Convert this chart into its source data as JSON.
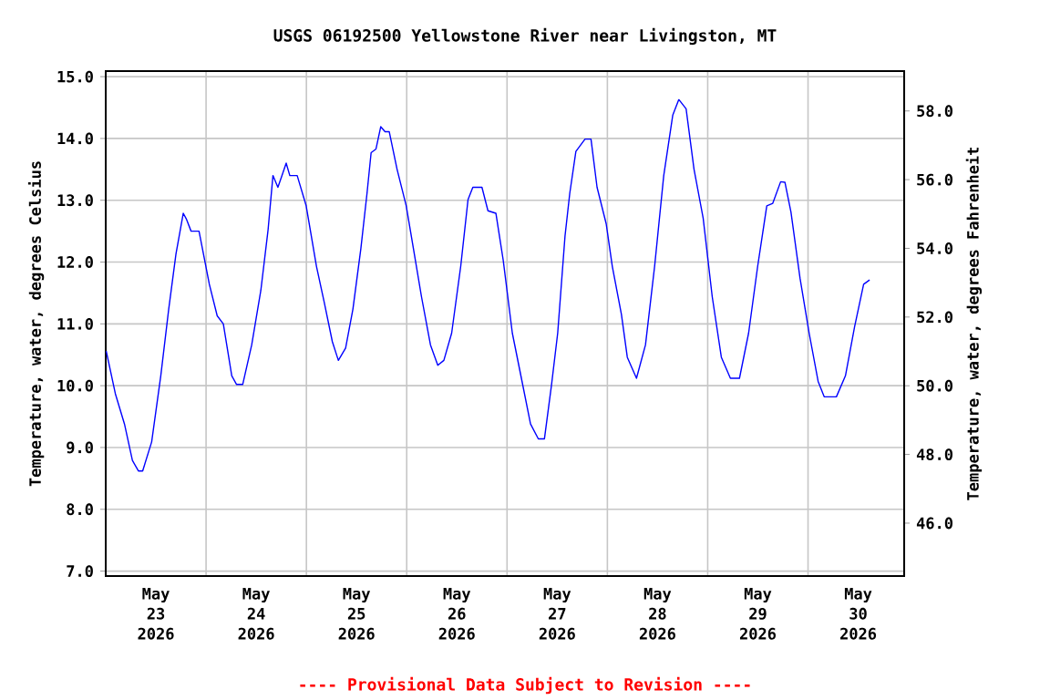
{
  "chart_data": {
    "type": "line",
    "title": "USGS 06192500 Yellowstone River near Livingston, MT",
    "ylabel": "Temperature, water, degrees Celsius",
    "y2label": "Temperature, water, degrees Fahrenheit",
    "annotations": [
      "---- Provisional Data Subject to Revision ----"
    ],
    "color": "#0000ff",
    "grid": true,
    "xlim": [
      "2026-05-23T00:00",
      "2026-05-30T23:00"
    ],
    "xticks": [
      {
        "value": "2026-05-23T12:00",
        "label": "May 23 2026"
      },
      {
        "value": "2026-05-24T12:00",
        "label": "May 24 2026"
      },
      {
        "value": "2026-05-25T12:00",
        "label": "May 25 2026"
      },
      {
        "value": "2026-05-26T12:00",
        "label": "May 26 2026"
      },
      {
        "value": "2026-05-27T12:00",
        "label": "May 27 2026"
      },
      {
        "value": "2026-05-28T12:00",
        "label": "May 28 2026"
      },
      {
        "value": "2026-05-29T12:00",
        "label": "May 29 2026"
      },
      {
        "value": "2026-05-30T12:00",
        "label": "May 30 2026"
      },
      {
        "value": "2026-05-24T00:00",
        "label": null
      },
      {
        "value": "2026-05-25T00:00",
        "label": null
      },
      {
        "value": "2026-05-26T00:00",
        "label": null
      },
      {
        "value": "2026-05-27T00:00",
        "label": null
      },
      {
        "value": "2026-05-28T00:00",
        "label": null
      },
      {
        "value": "2026-05-29T00:00",
        "label": null
      },
      {
        "value": "2026-05-30T00:00",
        "label": null
      }
    ],
    "ylim": [
      6.92,
      15.09
    ],
    "yticks": [
      {
        "value": 7,
        "label": "7.0"
      },
      {
        "value": 8,
        "label": "8.0"
      },
      {
        "value": 9,
        "label": "9.0"
      },
      {
        "value": 10,
        "label": "10.0"
      },
      {
        "value": 11,
        "label": "11.0"
      },
      {
        "value": 12,
        "label": "12.0"
      },
      {
        "value": 13,
        "label": "13.0"
      },
      {
        "value": 14,
        "label": "14.0"
      },
      {
        "value": 15,
        "label": "15.0"
      }
    ],
    "y2lim": [
      44.46,
      59.16
    ],
    "y2ticks": [
      {
        "value": 46,
        "label": "46.0"
      },
      {
        "value": 48,
        "label": "48.0"
      },
      {
        "value": 50,
        "label": "50.0"
      },
      {
        "value": 52,
        "label": "52.0"
      },
      {
        "value": 54,
        "label": "54.0"
      },
      {
        "value": 56,
        "label": "56.0"
      },
      {
        "value": 58,
        "label": "58.0"
      }
    ],
    "x": [
      "2026-05-23T00:07",
      "2026-05-23T02:18",
      "2026-05-23T04:29",
      "2026-05-23T06:23",
      "2026-05-23T07:49",
      "2026-05-23T08:50",
      "2026-05-23T10:59",
      "2026-05-23T13:10",
      "2026-05-23T15:04",
      "2026-05-23T16:48",
      "2026-05-23T18:33",
      "2026-05-23T19:16",
      "2026-05-23T20:25",
      "2026-05-23T22:19",
      "2026-05-24T00:47",
      "2026-05-24T02:40",
      "2026-05-24T04:08",
      "2026-05-24T06:09",
      "2026-05-24T07:18",
      "2026-05-24T08:46",
      "2026-05-24T10:55",
      "2026-05-24T13:06",
      "2026-05-24T14:50",
      "2026-05-24T16:00",
      "2026-05-24T17:11",
      "2026-05-24T18:10",
      "2026-05-24T19:10",
      "2026-05-24T20:02",
      "2026-05-24T21:48",
      "2026-05-24T23:57",
      "2026-05-25T02:25",
      "2026-05-25T04:18",
      "2026-05-25T06:13",
      "2026-05-25T07:39",
      "2026-05-25T09:23",
      "2026-05-25T11:08",
      "2026-05-25T13:02",
      "2026-05-25T14:30",
      "2026-05-25T15:29",
      "2026-05-25T16:39",
      "2026-05-25T17:47",
      "2026-05-25T18:49",
      "2026-05-25T19:49",
      "2026-05-25T21:42",
      "2026-05-25T23:53",
      "2026-05-26T01:36",
      "2026-05-26T03:32",
      "2026-05-26T05:41",
      "2026-05-26T07:26",
      "2026-05-26T08:53",
      "2026-05-26T10:45",
      "2026-05-26T12:55",
      "2026-05-26T14:40",
      "2026-05-26T15:49",
      "2026-05-26T18:00",
      "2026-05-26T19:26",
      "2026-05-26T21:20",
      "2026-05-26T23:05",
      "2026-05-27T01:16",
      "2026-05-27T03:26",
      "2026-05-27T05:37",
      "2026-05-27T07:29",
      "2026-05-27T08:57",
      "2026-05-27T10:39",
      "2026-05-27T12:07",
      "2026-05-27T13:52",
      "2026-05-27T15:00",
      "2026-05-27T16:28",
      "2026-05-27T18:39",
      "2026-05-27T20:05",
      "2026-05-27T21:32",
      "2026-05-27T23:43",
      "2026-05-28T01:11",
      "2026-05-28T03:22",
      "2026-05-28T04:46",
      "2026-05-28T06:58",
      "2026-05-28T09:07",
      "2026-05-28T11:18",
      "2026-05-28T13:29",
      "2026-05-28T15:39",
      "2026-05-28T17:05",
      "2026-05-28T18:50",
      "2026-05-28T20:44",
      "2026-05-28T22:55",
      "2026-05-29T01:05",
      "2026-05-29T03:16",
      "2026-05-29T05:26",
      "2026-05-29T07:36",
      "2026-05-29T09:47",
      "2026-05-29T11:57",
      "2026-05-29T14:08",
      "2026-05-29T15:34",
      "2026-05-29T17:27",
      "2026-05-29T18:29",
      "2026-05-29T19:55",
      "2026-05-29T22:05",
      "2026-05-30T00:16",
      "2026-05-30T02:25",
      "2026-05-30T03:52",
      "2026-05-30T06:47",
      "2026-05-30T08:57",
      "2026-05-30T11:08",
      "2026-05-30T13:18",
      "2026-05-30T14:44"
    ],
    "values": [
      10.56,
      9.87,
      9.38,
      8.79,
      8.62,
      8.62,
      9.09,
      10.16,
      11.24,
      12.13,
      12.79,
      12.7,
      12.5,
      12.5,
      11.64,
      11.13,
      11.0,
      10.16,
      10.02,
      10.02,
      10.66,
      11.54,
      12.52,
      13.4,
      13.21,
      13.4,
      13.6,
      13.4,
      13.4,
      12.91,
      11.93,
      11.34,
      10.71,
      10.41,
      10.61,
      11.24,
      12.22,
      13.11,
      13.77,
      13.83,
      14.19,
      14.11,
      14.11,
      13.5,
      12.91,
      12.22,
      11.44,
      10.66,
      10.33,
      10.41,
      10.85,
      11.93,
      13.01,
      13.21,
      13.21,
      12.83,
      12.79,
      12.03,
      10.85,
      10.12,
      9.38,
      9.14,
      9.14,
      10.02,
      10.85,
      12.42,
      13.11,
      13.79,
      13.99,
      13.99,
      13.21,
      12.62,
      11.93,
      11.15,
      10.46,
      10.12,
      10.66,
      11.93,
      13.4,
      14.38,
      14.63,
      14.48,
      13.5,
      12.71,
      11.44,
      10.46,
      10.12,
      10.12,
      10.85,
      11.93,
      12.91,
      12.95,
      13.3,
      13.29,
      12.81,
      11.74,
      10.85,
      10.07,
      9.82,
      9.82,
      10.16,
      10.95,
      11.64,
      11.71
    ]
  }
}
